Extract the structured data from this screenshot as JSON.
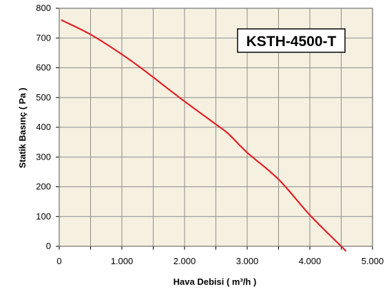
{
  "chart_data": {
    "type": "line",
    "title": "",
    "annotation": "KSTH-4500-T",
    "xlabel": "Hava Debisi ( m³/h )",
    "ylabel": "Statik Basınç ( Pa )",
    "xlim": [
      0,
      5000
    ],
    "ylim": [
      0,
      800
    ],
    "x_ticks": [
      0,
      500,
      1000,
      1500,
      2000,
      2500,
      3000,
      3500,
      4000,
      4500,
      5000
    ],
    "y_ticks": [
      0,
      100,
      200,
      300,
      400,
      500,
      600,
      700,
      800
    ],
    "x_tick_labels": [
      "0",
      "1.000",
      "2.000",
      "3.000",
      "4.000",
      "5.000"
    ],
    "x_tick_label_values": [
      0,
      1000,
      2000,
      3000,
      4000,
      5000
    ],
    "y_tick_labels": [
      "0",
      "100",
      "200",
      "300",
      "400",
      "500",
      "600",
      "700",
      "800"
    ],
    "grid": true,
    "plot_background": "#f5f0e0",
    "series": [
      {
        "color": "#e31e24",
        "x": [
          40,
          500,
          1000,
          1300,
          1500,
          2000,
          2500,
          2700,
          3000,
          3500,
          4000,
          4500,
          4570
        ],
        "y": [
          760,
          712,
          645,
          600,
          568,
          487,
          410,
          378,
          315,
          225,
          105,
          0,
          -15
        ]
      }
    ]
  }
}
